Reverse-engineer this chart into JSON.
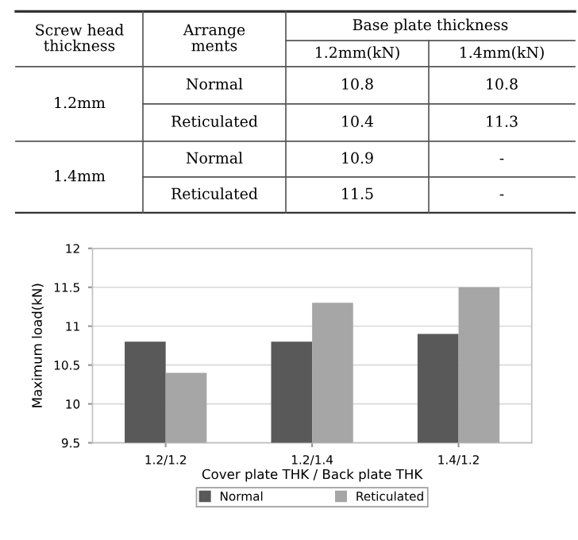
{
  "chart_data": [
    {
      "type": "other",
      "annotations": [
        "Screw head\nthickness",
        "Arrange\nments",
        "Base plate thickness"
      ],
      "y_categories": [
        "1.2mm",
        "1.4mm"
      ],
      "categories": [
        "Normal",
        "Reticulated",
        "Normal",
        "Reticulated"
      ],
      "series": [
        {
          "name": "1.2mm(kN)",
          "values": [
            10.8,
            10.4,
            10.9,
            11.5
          ],
          "value_labels": [
            "10.8",
            "10.4",
            "10.9",
            "11.5"
          ]
        },
        {
          "name": "1.4mm(kN)",
          "values": [
            10.8,
            11.3,
            null,
            null
          ],
          "value_labels": [
            "10.8",
            "11.3",
            "-",
            "-"
          ]
        }
      ]
    },
    {
      "type": "bar",
      "xlabel": "Cover plate THK / Back plate THK",
      "ylabel": "Maximum load(kN)",
      "categories": [
        "1.2/1.2",
        "1.2/1.4",
        "1.4/1.2"
      ],
      "series": [
        {
          "name": "Normal",
          "color": "#595959",
          "values": [
            10.8,
            10.8,
            10.9
          ]
        },
        {
          "name": "Reticulated",
          "color": "#a6a6a6",
          "values": [
            10.4,
            11.3,
            11.5
          ]
        }
      ],
      "ylim": [
        9.5,
        12
      ],
      "yticks": [
        9.5,
        10,
        10.5,
        11,
        11.5,
        12
      ],
      "grid": "y",
      "legend": "bottom"
    }
  ]
}
